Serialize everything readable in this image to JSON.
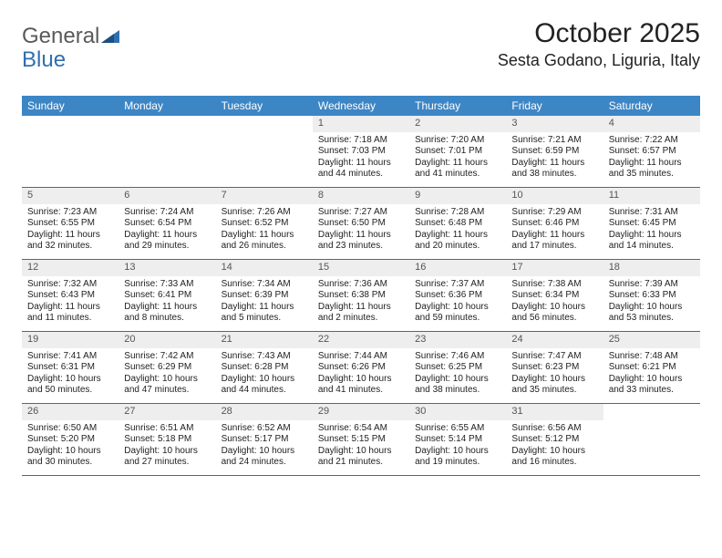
{
  "logo": {
    "text1": "General",
    "text2": "Blue"
  },
  "title": "October 2025",
  "location": "Sesta Godano, Liguria, Italy",
  "colors": {
    "header_bg": "#3d86c6",
    "header_text": "#ffffff",
    "daynum_bg": "#eeeeee",
    "daynum_text": "#555555",
    "divider": "#2f6fb0",
    "body_text": "#222222",
    "logo_gray": "#5a5a5a",
    "logo_blue": "#2f6fb0"
  },
  "dow": [
    "Sunday",
    "Monday",
    "Tuesday",
    "Wednesday",
    "Thursday",
    "Friday",
    "Saturday"
  ],
  "weeks": [
    [
      {
        "n": "",
        "sr": "",
        "ss": "",
        "dl": ""
      },
      {
        "n": "",
        "sr": "",
        "ss": "",
        "dl": ""
      },
      {
        "n": "",
        "sr": "",
        "ss": "",
        "dl": ""
      },
      {
        "n": "1",
        "sr": "Sunrise: 7:18 AM",
        "ss": "Sunset: 7:03 PM",
        "dl": "Daylight: 11 hours and 44 minutes."
      },
      {
        "n": "2",
        "sr": "Sunrise: 7:20 AM",
        "ss": "Sunset: 7:01 PM",
        "dl": "Daylight: 11 hours and 41 minutes."
      },
      {
        "n": "3",
        "sr": "Sunrise: 7:21 AM",
        "ss": "Sunset: 6:59 PM",
        "dl": "Daylight: 11 hours and 38 minutes."
      },
      {
        "n": "4",
        "sr": "Sunrise: 7:22 AM",
        "ss": "Sunset: 6:57 PM",
        "dl": "Daylight: 11 hours and 35 minutes."
      }
    ],
    [
      {
        "n": "5",
        "sr": "Sunrise: 7:23 AM",
        "ss": "Sunset: 6:55 PM",
        "dl": "Daylight: 11 hours and 32 minutes."
      },
      {
        "n": "6",
        "sr": "Sunrise: 7:24 AM",
        "ss": "Sunset: 6:54 PM",
        "dl": "Daylight: 11 hours and 29 minutes."
      },
      {
        "n": "7",
        "sr": "Sunrise: 7:26 AM",
        "ss": "Sunset: 6:52 PM",
        "dl": "Daylight: 11 hours and 26 minutes."
      },
      {
        "n": "8",
        "sr": "Sunrise: 7:27 AM",
        "ss": "Sunset: 6:50 PM",
        "dl": "Daylight: 11 hours and 23 minutes."
      },
      {
        "n": "9",
        "sr": "Sunrise: 7:28 AM",
        "ss": "Sunset: 6:48 PM",
        "dl": "Daylight: 11 hours and 20 minutes."
      },
      {
        "n": "10",
        "sr": "Sunrise: 7:29 AM",
        "ss": "Sunset: 6:46 PM",
        "dl": "Daylight: 11 hours and 17 minutes."
      },
      {
        "n": "11",
        "sr": "Sunrise: 7:31 AM",
        "ss": "Sunset: 6:45 PM",
        "dl": "Daylight: 11 hours and 14 minutes."
      }
    ],
    [
      {
        "n": "12",
        "sr": "Sunrise: 7:32 AM",
        "ss": "Sunset: 6:43 PM",
        "dl": "Daylight: 11 hours and 11 minutes."
      },
      {
        "n": "13",
        "sr": "Sunrise: 7:33 AM",
        "ss": "Sunset: 6:41 PM",
        "dl": "Daylight: 11 hours and 8 minutes."
      },
      {
        "n": "14",
        "sr": "Sunrise: 7:34 AM",
        "ss": "Sunset: 6:39 PM",
        "dl": "Daylight: 11 hours and 5 minutes."
      },
      {
        "n": "15",
        "sr": "Sunrise: 7:36 AM",
        "ss": "Sunset: 6:38 PM",
        "dl": "Daylight: 11 hours and 2 minutes."
      },
      {
        "n": "16",
        "sr": "Sunrise: 7:37 AM",
        "ss": "Sunset: 6:36 PM",
        "dl": "Daylight: 10 hours and 59 minutes."
      },
      {
        "n": "17",
        "sr": "Sunrise: 7:38 AM",
        "ss": "Sunset: 6:34 PM",
        "dl": "Daylight: 10 hours and 56 minutes."
      },
      {
        "n": "18",
        "sr": "Sunrise: 7:39 AM",
        "ss": "Sunset: 6:33 PM",
        "dl": "Daylight: 10 hours and 53 minutes."
      }
    ],
    [
      {
        "n": "19",
        "sr": "Sunrise: 7:41 AM",
        "ss": "Sunset: 6:31 PM",
        "dl": "Daylight: 10 hours and 50 minutes."
      },
      {
        "n": "20",
        "sr": "Sunrise: 7:42 AM",
        "ss": "Sunset: 6:29 PM",
        "dl": "Daylight: 10 hours and 47 minutes."
      },
      {
        "n": "21",
        "sr": "Sunrise: 7:43 AM",
        "ss": "Sunset: 6:28 PM",
        "dl": "Daylight: 10 hours and 44 minutes."
      },
      {
        "n": "22",
        "sr": "Sunrise: 7:44 AM",
        "ss": "Sunset: 6:26 PM",
        "dl": "Daylight: 10 hours and 41 minutes."
      },
      {
        "n": "23",
        "sr": "Sunrise: 7:46 AM",
        "ss": "Sunset: 6:25 PM",
        "dl": "Daylight: 10 hours and 38 minutes."
      },
      {
        "n": "24",
        "sr": "Sunrise: 7:47 AM",
        "ss": "Sunset: 6:23 PM",
        "dl": "Daylight: 10 hours and 35 minutes."
      },
      {
        "n": "25",
        "sr": "Sunrise: 7:48 AM",
        "ss": "Sunset: 6:21 PM",
        "dl": "Daylight: 10 hours and 33 minutes."
      }
    ],
    [
      {
        "n": "26",
        "sr": "Sunrise: 6:50 AM",
        "ss": "Sunset: 5:20 PM",
        "dl": "Daylight: 10 hours and 30 minutes."
      },
      {
        "n": "27",
        "sr": "Sunrise: 6:51 AM",
        "ss": "Sunset: 5:18 PM",
        "dl": "Daylight: 10 hours and 27 minutes."
      },
      {
        "n": "28",
        "sr": "Sunrise: 6:52 AM",
        "ss": "Sunset: 5:17 PM",
        "dl": "Daylight: 10 hours and 24 minutes."
      },
      {
        "n": "29",
        "sr": "Sunrise: 6:54 AM",
        "ss": "Sunset: 5:15 PM",
        "dl": "Daylight: 10 hours and 21 minutes."
      },
      {
        "n": "30",
        "sr": "Sunrise: 6:55 AM",
        "ss": "Sunset: 5:14 PM",
        "dl": "Daylight: 10 hours and 19 minutes."
      },
      {
        "n": "31",
        "sr": "Sunrise: 6:56 AM",
        "ss": "Sunset: 5:12 PM",
        "dl": "Daylight: 10 hours and 16 minutes."
      },
      {
        "n": "",
        "sr": "",
        "ss": "",
        "dl": ""
      }
    ]
  ]
}
